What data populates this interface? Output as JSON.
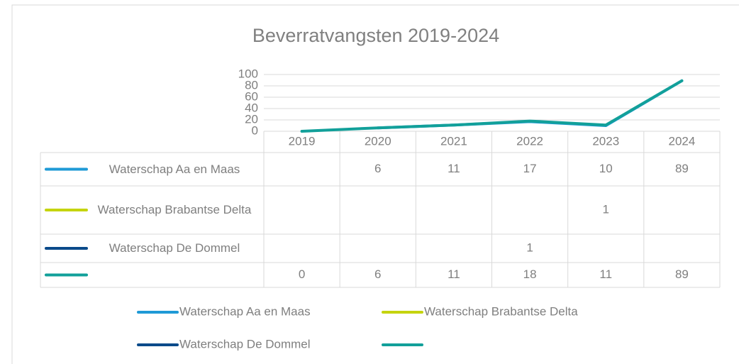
{
  "chart_data": {
    "type": "line",
    "title": "Beverratvangsten 2019-2024",
    "categories": [
      "2019",
      "2020",
      "2021",
      "2022",
      "2023",
      "2024"
    ],
    "series": [
      {
        "name": "Waterschap Aa en Maas",
        "color": "#1f9ad6",
        "values": [
          null,
          6,
          11,
          17,
          10,
          89
        ]
      },
      {
        "name": "Waterschap Brabantse Delta",
        "color": "#c5d40f",
        "values": [
          null,
          null,
          null,
          null,
          1,
          null
        ]
      },
      {
        "name": "Waterschap De Dommel",
        "color": "#0a4a8a",
        "values": [
          null,
          null,
          null,
          1,
          null,
          null
        ]
      },
      {
        "name": null,
        "color": "#12a09a",
        "values": [
          0,
          6,
          11,
          18,
          11,
          89
        ]
      }
    ],
    "ylim": [
      0,
      100
    ],
    "yticks": [
      0,
      20,
      40,
      60,
      80,
      100
    ],
    "grid": true,
    "legend": "bottom",
    "data_table": true
  }
}
